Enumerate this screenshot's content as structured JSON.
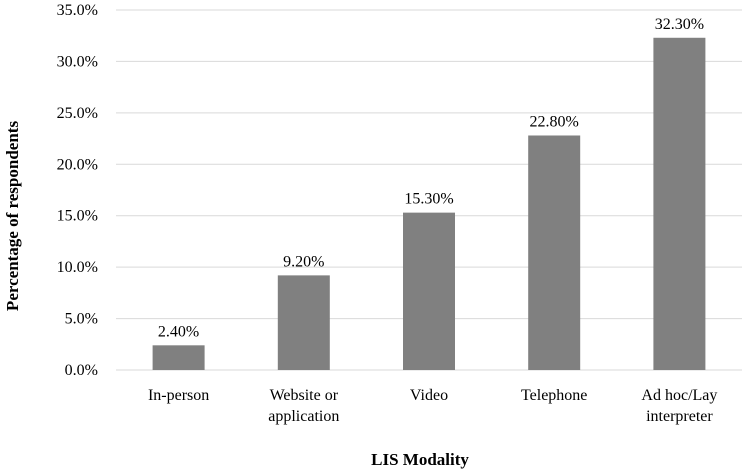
{
  "chart_data": {
    "type": "bar",
    "title": "",
    "xlabel": "LIS Modality",
    "ylabel": "Percentage of respondents",
    "categories": [
      [
        "In-person"
      ],
      [
        "Website or",
        "application"
      ],
      [
        "Video"
      ],
      [
        "Telephone"
      ],
      [
        "Ad hoc/Lay",
        "interpreter"
      ]
    ],
    "values": [
      2.4,
      9.2,
      15.3,
      22.8,
      32.3
    ],
    "data_labels": [
      "2.40%",
      "9.20%",
      "15.30%",
      "22.80%",
      "32.30%"
    ],
    "ylim": [
      0,
      35
    ],
    "yticks": [
      0,
      5,
      10,
      15,
      20,
      25,
      30,
      35
    ],
    "ytick_labels": [
      "0.0%",
      "5.0%",
      "10.0%",
      "15.0%",
      "20.0%",
      "25.0%",
      "30.0%",
      "35.0%"
    ],
    "grid": true,
    "legend": "none",
    "colors": {
      "bar": "#808080",
      "grid": "#d9d9d9",
      "text": "#000000"
    }
  }
}
